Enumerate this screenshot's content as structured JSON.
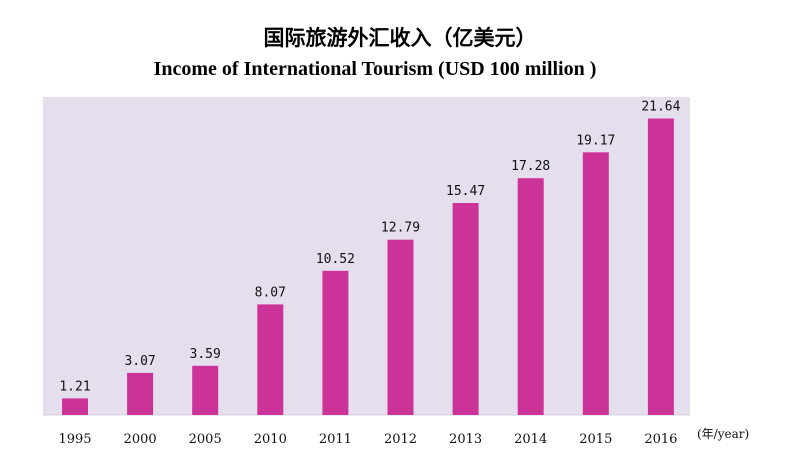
{
  "chart_data": {
    "type": "bar",
    "title": "国际旅游外汇收入（亿美元）",
    "subtitle": "Income of International Tourism (USD 100 million )",
    "xlabel": "(年/year)",
    "ylabel": "",
    "categories": [
      "1995",
      "2000",
      "2005",
      "2010",
      "2011",
      "2012",
      "2013",
      "2014",
      "2015",
      "2016"
    ],
    "values": [
      1.21,
      3.07,
      3.59,
      8.07,
      10.52,
      12.79,
      15.47,
      17.28,
      19.17,
      21.64
    ],
    "value_labels": [
      "1.21",
      "3.07",
      "3.59",
      "8.07",
      "10.52",
      "12.79",
      "15.47",
      "17.28",
      "19.17",
      "21.64"
    ],
    "ylim": [
      0,
      24
    ],
    "grid": false,
    "legend": "none",
    "colors": {
      "bar": "#cc3399",
      "plot_background": "#e5dfed"
    }
  }
}
